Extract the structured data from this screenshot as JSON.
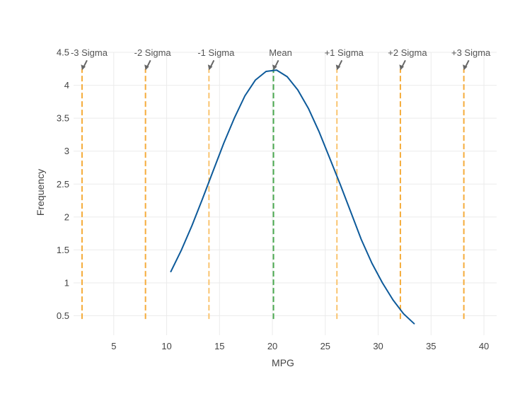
{
  "chart_data": {
    "type": "line",
    "title": "",
    "xlabel": "MPG",
    "ylabel": "Frequency",
    "xlim": [
      1.2,
      41.2
    ],
    "ylim": [
      0.2,
      4.5
    ],
    "xticks": [
      5,
      10,
      15,
      20,
      25,
      30,
      35,
      40
    ],
    "yticks": [
      0.5,
      1,
      1.5,
      2,
      2.5,
      3,
      3.5,
      4,
      4.5
    ],
    "grid": true,
    "legend": "none",
    "series": [
      {
        "color": "#0d5a9a",
        "x": [
          10.4,
          11.4,
          12.4,
          13.4,
          14.4,
          15.4,
          16.4,
          17.4,
          18.4,
          19.4,
          20.4,
          21.4,
          22.4,
          23.4,
          24.4,
          25.4,
          26.4,
          27.4,
          28.4,
          29.4,
          30.4,
          31.4,
          32.4,
          33.4
        ],
        "y": [
          1.17,
          1.5,
          1.87,
          2.28,
          2.7,
          3.12,
          3.5,
          3.84,
          4.08,
          4.21,
          4.23,
          4.13,
          3.93,
          3.65,
          3.3,
          2.9,
          2.5,
          2.08,
          1.66,
          1.3,
          1.0,
          0.74,
          0.53,
          0.38
        ]
      }
    ],
    "vlines": [
      {
        "label": "-3 Sigma",
        "x": 2.0,
        "color": "#f5ac3b"
      },
      {
        "label": "-2 Sigma",
        "x": 8.0,
        "color": "#f5ac3b"
      },
      {
        "label": "-1 Sigma",
        "x": 14.0,
        "color": "#f9c470"
      },
      {
        "label": "Mean",
        "x": 20.1,
        "color": "#4aa84f"
      },
      {
        "label": "+1 Sigma",
        "x": 26.1,
        "color": "#f9c470"
      },
      {
        "label": "+2 Sigma",
        "x": 32.1,
        "color": "#f5ac3b"
      },
      {
        "label": "+3 Sigma",
        "x": 38.1,
        "color": "#f5ac3b"
      }
    ],
    "vline_range": [
      0.45,
      4.25
    ]
  }
}
